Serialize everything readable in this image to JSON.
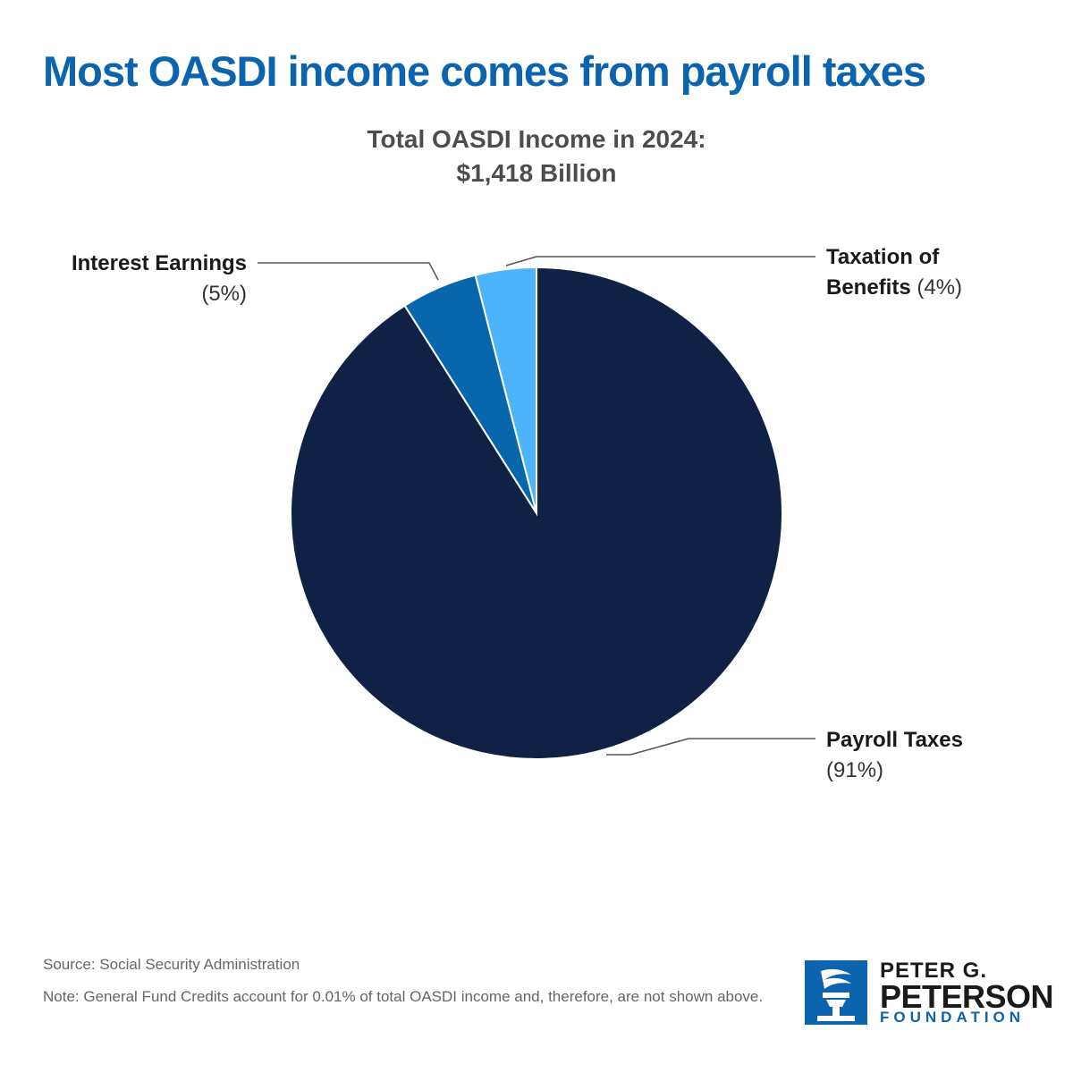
{
  "headline": "Most OASDI income comes from payroll taxes",
  "chart_data": {
    "type": "pie",
    "title": "Total OASDI Income in 2024:",
    "subtitle": "$1,418 Billion",
    "slices": [
      {
        "label_lines": [
          "Payroll Taxes"
        ],
        "pct_label": "(91%)",
        "value": 91,
        "color": "#0f2144"
      },
      {
        "label_lines": [
          "Interest Earnings"
        ],
        "pct_label": "(5%)",
        "value": 5,
        "color": "#0866ad"
      },
      {
        "label_lines": [
          "Taxation of",
          "Benefits"
        ],
        "pct_label": "(4%)",
        "value": 4,
        "color": "#4db3fa"
      }
    ]
  },
  "footer": {
    "source": "Source: Social Security Administration",
    "note": "Note: General Fund Credits account for 0.01% of total OASDI income and, therefore, are not shown above."
  },
  "logo": {
    "line1": "PETER G.",
    "line2": "PETERSON",
    "line3": "FOUNDATION"
  }
}
